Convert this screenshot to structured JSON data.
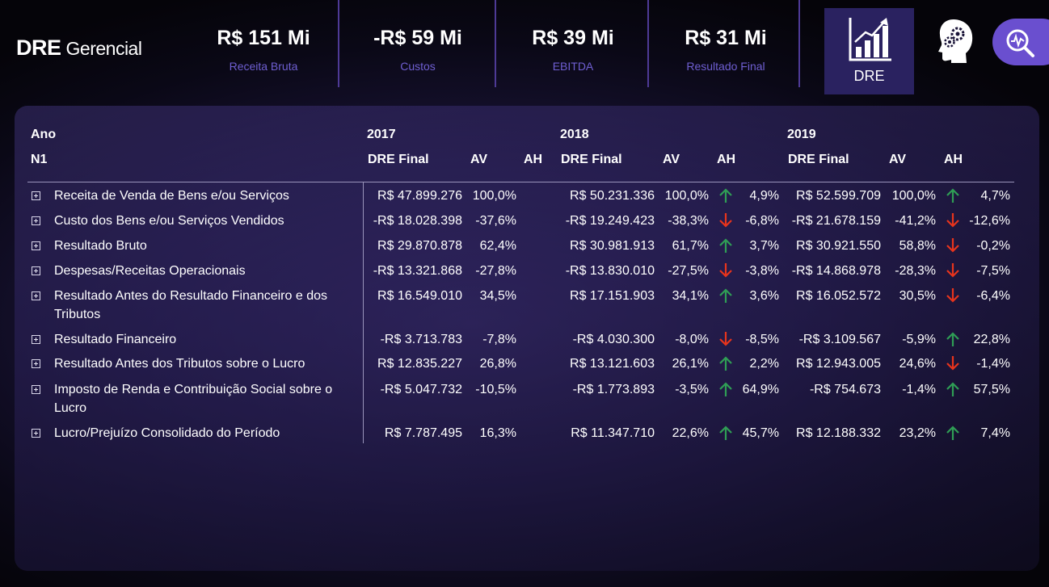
{
  "header": {
    "title": "DRE",
    "subtitle": "Gerencial",
    "kpis": [
      {
        "value": "R$ 151 Mi",
        "label": "Receita Bruta"
      },
      {
        "value": "-R$ 59 Mi",
        "label": "Custos"
      },
      {
        "value": "R$ 39 Mi",
        "label": "EBITDA"
      },
      {
        "value": "R$ 31 Mi",
        "label": "Resultado Final"
      }
    ],
    "dre_button_label": "DRE",
    "icons": {
      "chart": "bar-chart-growth-icon",
      "head": "head-gears-icon",
      "search": "search-analytics-icon"
    }
  },
  "colors": {
    "accent": "#6a4fcf",
    "kpi_label": "#6f5fd2",
    "up": "#2f9e55",
    "down": "#e8341c"
  },
  "table": {
    "row_header_1": "Ano",
    "row_header_2": "N1",
    "years": [
      "2017",
      "2018",
      "2019"
    ],
    "columns": {
      "dre": "DRE Final",
      "av": "AV",
      "ah": "AH"
    },
    "rows": [
      {
        "label": "Receita de Venda de Bens e/ou Serviços",
        "y2017": {
          "dre": "R$ 47.899.276",
          "av": "100,0%"
        },
        "y2018": {
          "dre": "R$ 50.231.336",
          "av": "100,0%",
          "ah": "4,9%",
          "trend": "up"
        },
        "y2019": {
          "dre": "R$ 52.599.709",
          "av": "100,0%",
          "ah": "4,7%",
          "trend": "up"
        }
      },
      {
        "label": "Custo dos Bens e/ou Serviços Vendidos",
        "y2017": {
          "dre": "-R$ 18.028.398",
          "av": "-37,6%"
        },
        "y2018": {
          "dre": "-R$ 19.249.423",
          "av": "-38,3%",
          "ah": "-6,8%",
          "trend": "down"
        },
        "y2019": {
          "dre": "-R$ 21.678.159",
          "av": "-41,2%",
          "ah": "-12,6%",
          "trend": "down"
        }
      },
      {
        "label": "Resultado Bruto",
        "y2017": {
          "dre": "R$ 29.870.878",
          "av": "62,4%"
        },
        "y2018": {
          "dre": "R$ 30.981.913",
          "av": "61,7%",
          "ah": "3,7%",
          "trend": "up"
        },
        "y2019": {
          "dre": "R$ 30.921.550",
          "av": "58,8%",
          "ah": "-0,2%",
          "trend": "down"
        }
      },
      {
        "label": "Despesas/Receitas Operacionais",
        "y2017": {
          "dre": "-R$ 13.321.868",
          "av": "-27,8%"
        },
        "y2018": {
          "dre": "-R$ 13.830.010",
          "av": "-27,5%",
          "ah": "-3,8%",
          "trend": "down"
        },
        "y2019": {
          "dre": "-R$ 14.868.978",
          "av": "-28,3%",
          "ah": "-7,5%",
          "trend": "down"
        }
      },
      {
        "label": "Resultado Antes do Resultado Financeiro e dos Tributos",
        "y2017": {
          "dre": "R$ 16.549.010",
          "av": "34,5%"
        },
        "y2018": {
          "dre": "R$ 17.151.903",
          "av": "34,1%",
          "ah": "3,6%",
          "trend": "up"
        },
        "y2019": {
          "dre": "R$ 16.052.572",
          "av": "30,5%",
          "ah": "-6,4%",
          "trend": "down"
        }
      },
      {
        "label": "Resultado Financeiro",
        "y2017": {
          "dre": "-R$ 3.713.783",
          "av": "-7,8%"
        },
        "y2018": {
          "dre": "-R$ 4.030.300",
          "av": "-8,0%",
          "ah": "-8,5%",
          "trend": "down"
        },
        "y2019": {
          "dre": "-R$ 3.109.567",
          "av": "-5,9%",
          "ah": "22,8%",
          "trend": "up"
        }
      },
      {
        "label": "Resultado Antes dos Tributos sobre o Lucro",
        "y2017": {
          "dre": "R$ 12.835.227",
          "av": "26,8%"
        },
        "y2018": {
          "dre": "R$ 13.121.603",
          "av": "26,1%",
          "ah": "2,2%",
          "trend": "up"
        },
        "y2019": {
          "dre": "R$ 12.943.005",
          "av": "24,6%",
          "ah": "-1,4%",
          "trend": "down"
        }
      },
      {
        "label": "Imposto de Renda e Contribuição Social sobre o Lucro",
        "y2017": {
          "dre": "-R$ 5.047.732",
          "av": "-10,5%"
        },
        "y2018": {
          "dre": "-R$ 1.773.893",
          "av": "-3,5%",
          "ah": "64,9%",
          "trend": "up"
        },
        "y2019": {
          "dre": "-R$ 754.673",
          "av": "-1,4%",
          "ah": "57,5%",
          "trend": "up"
        }
      },
      {
        "label": "Lucro/Prejuízo Consolidado do Período",
        "y2017": {
          "dre": "R$ 7.787.495",
          "av": "16,3%"
        },
        "y2018": {
          "dre": "R$ 11.347.710",
          "av": "22,6%",
          "ah": "45,7%",
          "trend": "up"
        },
        "y2019": {
          "dre": "R$ 12.188.332",
          "av": "23,2%",
          "ah": "7,4%",
          "trend": "up"
        }
      }
    ]
  }
}
